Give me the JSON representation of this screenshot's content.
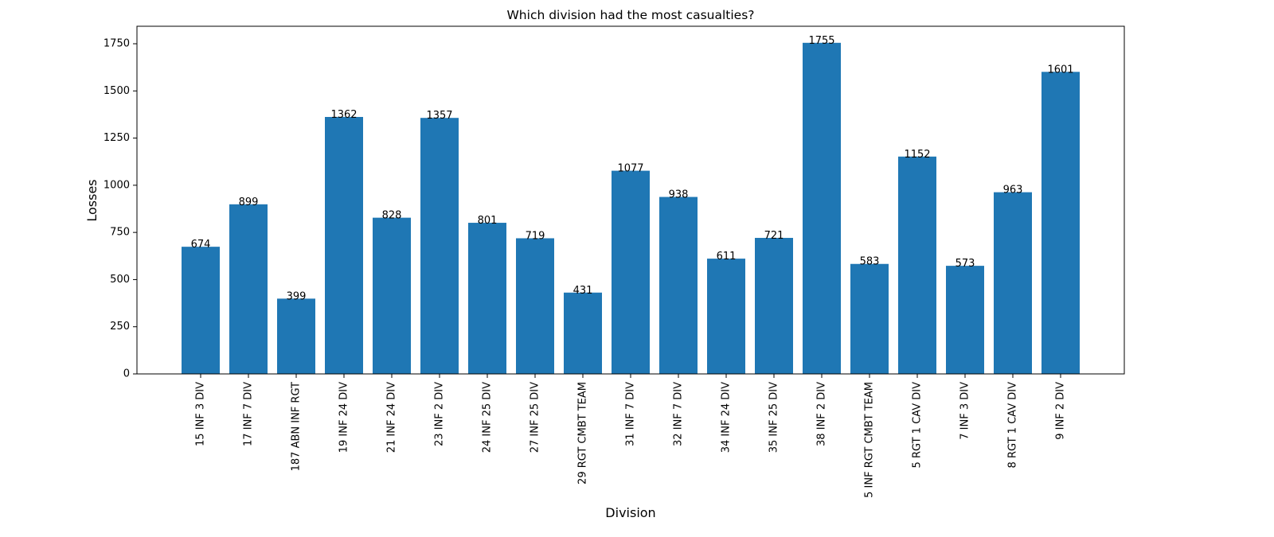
{
  "chart_data": {
    "type": "bar",
    "title": "Which division had the most casualties?",
    "xlabel": "Division",
    "ylabel": "Losses",
    "categories": [
      "15 INF 3 DIV",
      "17 INF 7 DIV",
      "187 ABN INF RGT",
      "19 INF 24 DIV",
      "21 INF 24 DIV",
      "23 INF 2 DIV",
      "24 INF 25 DIV",
      "27 INF 25 DIV",
      "29 RGT CMBT TEAM",
      "31 INF 7 DIV",
      "32 INF 7 DIV",
      "34 INF 24 DIV",
      "35 INF 25 DIV",
      "38 INF 2 DIV",
      "5 INF RGT CMBT TEAM",
      "5 RGT 1 CAV DIV",
      "7 INF 3 DIV",
      "8 RGT 1 CAV DIV",
      "9 INF 2 DIV"
    ],
    "values": [
      674,
      899,
      399,
      1362,
      828,
      1357,
      801,
      719,
      431,
      1077,
      938,
      611,
      721,
      1755,
      583,
      1152,
      573,
      963,
      1601
    ],
    "value_labels": [
      "674",
      "899",
      "399",
      "1362",
      "828",
      "1357",
      "801",
      "719",
      "431",
      "1077",
      "938",
      "611",
      "721",
      "1755",
      "583",
      "1152",
      "573",
      "963",
      "1601"
    ],
    "yticks": [
      0,
      250,
      500,
      750,
      1000,
      1250,
      1500,
      1750
    ],
    "ytick_labels": [
      "0",
      "250",
      "500",
      "750",
      "1000",
      "1250",
      "1500",
      "1750"
    ],
    "ylim": [
      0,
      1842.75
    ],
    "grid": false,
    "legend": "none",
    "bar_color": "#1f77b4"
  }
}
